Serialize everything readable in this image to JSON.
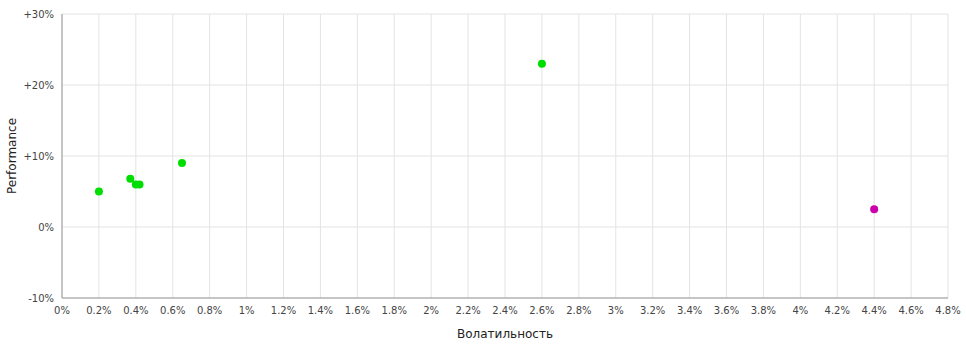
{
  "chart_data": {
    "type": "scatter",
    "xlabel": "Волатильность",
    "ylabel": "Performance",
    "xlim": [
      0.0,
      0.048
    ],
    "ylim": [
      -0.1,
      0.3
    ],
    "xticks": [
      {
        "value": 0.0,
        "label": "0%"
      },
      {
        "value": 0.002,
        "label": "0.2%"
      },
      {
        "value": 0.004,
        "label": "0.4%"
      },
      {
        "value": 0.006,
        "label": "0.6%"
      },
      {
        "value": 0.008,
        "label": "0.8%"
      },
      {
        "value": 0.01,
        "label": "1%"
      },
      {
        "value": 0.012,
        "label": "1.2%"
      },
      {
        "value": 0.014,
        "label": "1.4%"
      },
      {
        "value": 0.016,
        "label": "1.6%"
      },
      {
        "value": 0.018,
        "label": "1.8%"
      },
      {
        "value": 0.02,
        "label": "2%"
      },
      {
        "value": 0.022,
        "label": "2.2%"
      },
      {
        "value": 0.024,
        "label": "2.4%"
      },
      {
        "value": 0.026,
        "label": "2.6%"
      },
      {
        "value": 0.028,
        "label": "2.8%"
      },
      {
        "value": 0.03,
        "label": "3%"
      },
      {
        "value": 0.032,
        "label": "3.2%"
      },
      {
        "value": 0.034,
        "label": "3.4%"
      },
      {
        "value": 0.036,
        "label": "3.6%"
      },
      {
        "value": 0.038,
        "label": "3.8%"
      },
      {
        "value": 0.04,
        "label": "4%"
      },
      {
        "value": 0.042,
        "label": "4.2%"
      },
      {
        "value": 0.044,
        "label": "4.4%"
      },
      {
        "value": 0.046,
        "label": "4.6%"
      },
      {
        "value": 0.048,
        "label": "4.8%"
      }
    ],
    "yticks": [
      {
        "value": -0.1,
        "label": "-10%"
      },
      {
        "value": 0.0,
        "label": "0%"
      },
      {
        "value": 0.1,
        "label": "+10%"
      },
      {
        "value": 0.2,
        "label": "+20%"
      },
      {
        "value": 0.3,
        "label": "+30%"
      }
    ],
    "grid": true,
    "series": [
      {
        "color": "#00dd00",
        "x": [
          0.002,
          0.0037,
          0.004,
          0.0042,
          0.0065,
          0.026
        ],
        "values": [
          0.05,
          0.068,
          0.06,
          0.06,
          0.09,
          0.23
        ]
      },
      {
        "color": "#cc00aa",
        "x": [
          0.044
        ],
        "values": [
          0.025
        ]
      }
    ]
  }
}
